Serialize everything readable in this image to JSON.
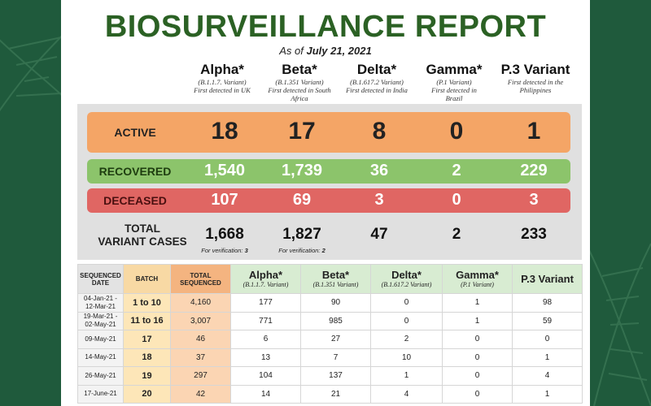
{
  "report": {
    "title": "BIOSURVEILLANCE REPORT",
    "as_of_prefix": "As of ",
    "as_of_date": "July 21, 2021"
  },
  "variants": [
    {
      "name": "Alpha*",
      "sub1": "(B.1.1.7. Variant)",
      "sub2": "First detected in UK",
      "sub3": ""
    },
    {
      "name": "Beta*",
      "sub1": "(B.1.351 Variant)",
      "sub2": "First detected in South",
      "sub3": "Africa"
    },
    {
      "name": "Delta*",
      "sub1": "(B.1.617.2 Variant)",
      "sub2": "First detected in India",
      "sub3": ""
    },
    {
      "name": "Gamma*",
      "sub1": "(P.1 Variant)",
      "sub2": "First detected in",
      "sub3": "Brazil"
    },
    {
      "name": "P.3 Variant",
      "sub1": "First detected in the",
      "sub2": "Philippines",
      "sub3": ""
    }
  ],
  "summary": {
    "active": {
      "label": "ACTIVE",
      "values": [
        "18",
        "17",
        "8",
        "0",
        "1"
      ]
    },
    "recovered": {
      "label": "RECOVERED",
      "values": [
        "1,540",
        "1,739",
        "36",
        "2",
        "229"
      ]
    },
    "deceased": {
      "label": "DECEASED",
      "values": [
        "107",
        "69",
        "3",
        "0",
        "3"
      ]
    },
    "total": {
      "label_line1": "TOTAL",
      "label_line2": "VARIANT CASES",
      "values": [
        "1,668",
        "1,827",
        "47",
        "2",
        "233"
      ],
      "verification_label": "For verification: ",
      "verification": [
        "3",
        "2",
        "",
        "",
        ""
      ]
    }
  },
  "sequencing_table": {
    "headers": {
      "date_line1": "SEQUENCED",
      "date_line2": "DATE",
      "batch": "BATCH",
      "total_line1": "TOTAL",
      "total_line2": "SEQUENCED",
      "alpha": "Alpha*",
      "alpha_sub": "(B.1.1.7. Variant)",
      "beta": "Beta*",
      "beta_sub": "(B.1.351 Variant)",
      "delta": "Delta*",
      "delta_sub": "(B.1.617.2 Variant)",
      "gamma": "Gamma*",
      "gamma_sub": "(P.1 Variant)",
      "p3": "P.3 Variant"
    },
    "rows": [
      {
        "date1": "04-Jan-21 -",
        "date2": "12-Mar-21",
        "batch": "1 to 10",
        "total": "4,160",
        "alpha": "177",
        "beta": "90",
        "delta": "0",
        "gamma": "1",
        "p3": "98"
      },
      {
        "date1": "19-Mar-21 -",
        "date2": "02-May-21",
        "batch": "11 to 16",
        "total": "3,007",
        "alpha": "771",
        "beta": "985",
        "delta": "0",
        "gamma": "1",
        "p3": "59"
      },
      {
        "date1": "09-May-21",
        "date2": "",
        "batch": "17",
        "total": "46",
        "alpha": "6",
        "beta": "27",
        "delta": "2",
        "gamma": "0",
        "p3": "0"
      },
      {
        "date1": "14-May-21",
        "date2": "",
        "batch": "18",
        "total": "37",
        "alpha": "13",
        "beta": "7",
        "delta": "10",
        "gamma": "0",
        "p3": "1"
      },
      {
        "date1": "26-May-21",
        "date2": "",
        "batch": "19",
        "total": "297",
        "alpha": "104",
        "beta": "137",
        "delta": "1",
        "gamma": "0",
        "p3": "4"
      },
      {
        "date1": "17-June-21",
        "date2": "",
        "batch": "20",
        "total": "42",
        "alpha": "14",
        "beta": "21",
        "delta": "4",
        "gamma": "0",
        "p3": "1"
      }
    ]
  },
  "colors": {
    "background": "#1f5a3c",
    "title_green": "#2b6124",
    "active": "#f4a566",
    "recovered": "#8cc46b",
    "deceased": "#e06663"
  }
}
